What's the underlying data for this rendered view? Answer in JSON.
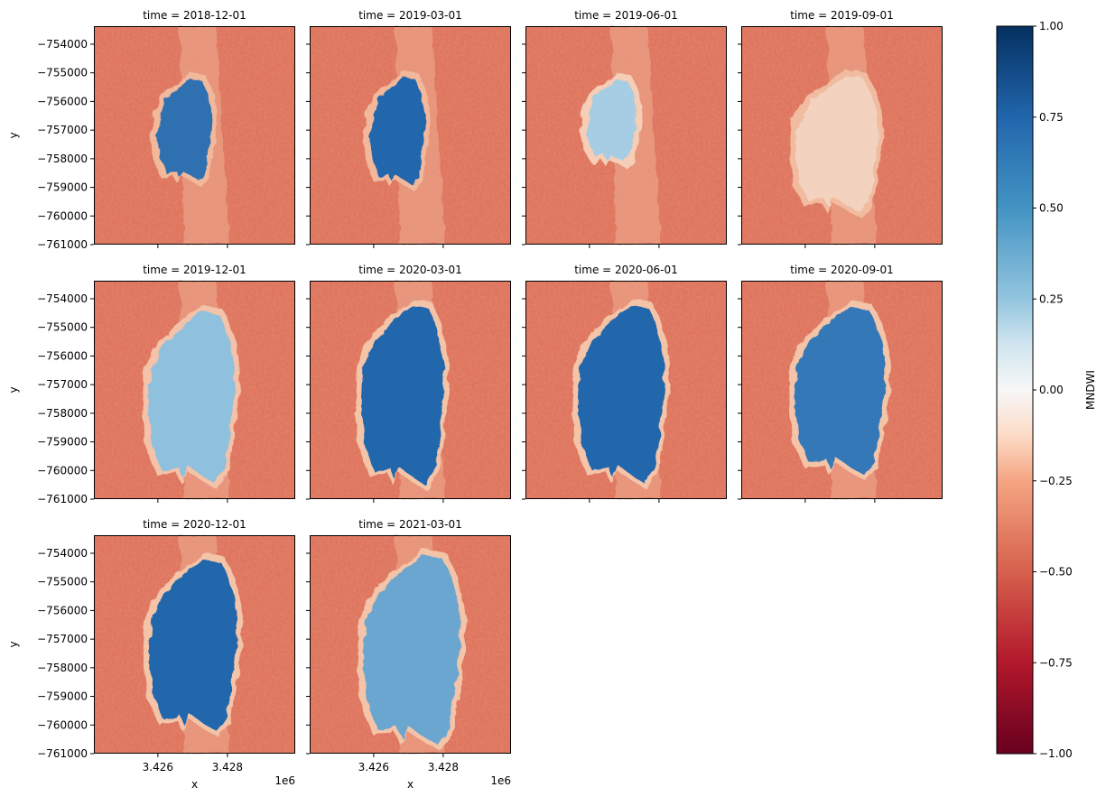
{
  "chart_data": {
    "type": "heatmap",
    "facet_label_prefix": "time = ",
    "facets": [
      "2018-12-01",
      "2019-03-01",
      "2019-06-01",
      "2019-09-01",
      "2019-12-01",
      "2020-03-01",
      "2020-06-01",
      "2020-09-01",
      "2020-12-01",
      "2021-03-01"
    ],
    "columns": 4,
    "xlabel": "x",
    "ylabel": "y",
    "x_offset_label": "1e6",
    "x_ticks": [
      3426000,
      3428000
    ],
    "x_tick_labels": [
      "3.426",
      "3.428"
    ],
    "xlim": [
      3424160,
      3429950
    ],
    "y_ticks": [
      -754000,
      -755000,
      -756000,
      -757000,
      -758000,
      -759000,
      -760000,
      -761000
    ],
    "y_tick_labels": [
      "−754000",
      "−755000",
      "−756000",
      "−757000",
      "−758000",
      "−759000",
      "−760000",
      "−761000"
    ],
    "ylim": [
      -761000,
      -753370
    ],
    "colorbar": {
      "label": "MNDWI",
      "colormap": "RdBu",
      "vmin": -1,
      "vmax": 1,
      "ticks": [
        1.0,
        0.75,
        0.5,
        0.25,
        0.0,
        -0.25,
        -0.5,
        -0.75,
        -1.0
      ],
      "tick_labels": [
        "1.00",
        "0.75",
        "0.50",
        "0.25",
        "0.00",
        "−0.25",
        "−0.50",
        "−0.75",
        "−1.00"
      ]
    },
    "grid": false
  }
}
